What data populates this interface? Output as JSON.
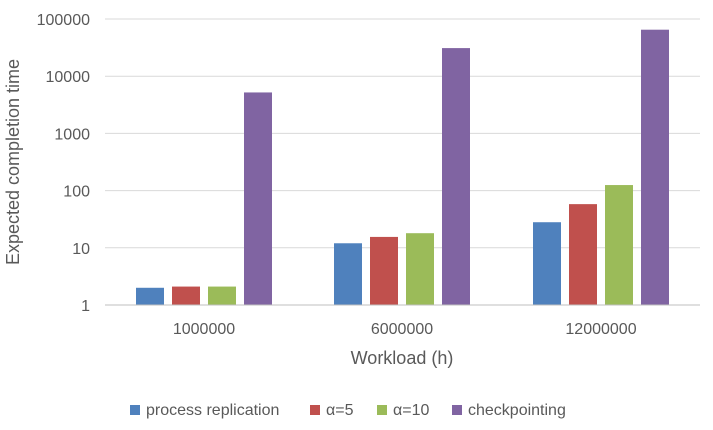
{
  "chart_data": {
    "type": "bar",
    "y_scale": "log",
    "ylim": [
      1,
      100000
    ],
    "y_ticks": [
      "1",
      "10",
      "100",
      "1000",
      "10000",
      "100000"
    ],
    "xlabel": "Workload (h)",
    "ylabel": "Expected completion time",
    "categories": [
      "1000000",
      "6000000",
      "12000000"
    ],
    "grid": true,
    "legend_position": "bottom",
    "series": [
      {
        "name": "process replication",
        "color": "#4f81bd",
        "values": [
          2,
          12,
          28
        ]
      },
      {
        "name": "α=5",
        "color": "#c0504d",
        "values": [
          2.1,
          15.5,
          58
        ]
      },
      {
        "name": "α=10",
        "color": "#9bbb59",
        "values": [
          2.1,
          18,
          125
        ]
      },
      {
        "name": "checkpointing",
        "color": "#8064a2",
        "values": [
          5200,
          31000,
          65000
        ]
      }
    ]
  }
}
